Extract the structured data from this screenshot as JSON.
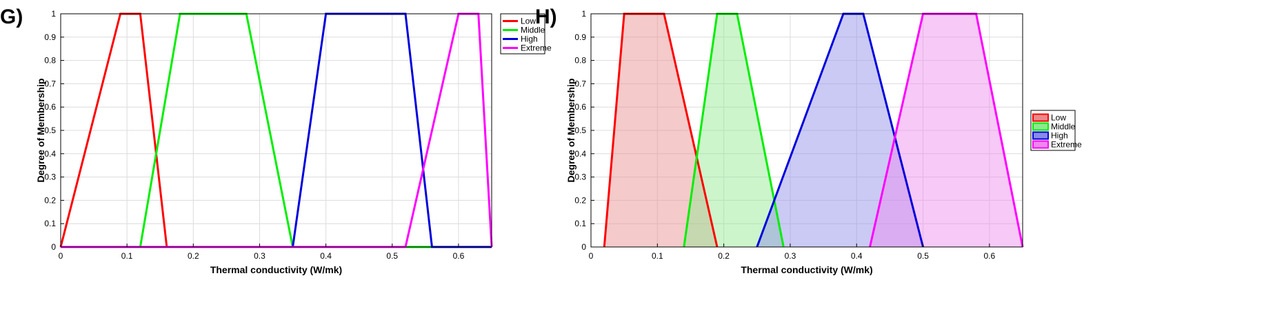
{
  "chart_data": [
    {
      "panel": "G)",
      "type": "line",
      "fill": false,
      "xlabel": "Thermal conductivity (W/mk)",
      "ylabel": "Degree of Membership",
      "xlim": [
        0,
        0.65
      ],
      "ylim": [
        0,
        1
      ],
      "xticks": [
        "0",
        "0.1",
        "0.2",
        "0.3",
        "0.4",
        "0.5",
        "0.6"
      ],
      "xtick_values": [
        0,
        0.1,
        0.2,
        0.3,
        0.4,
        0.5,
        0.6
      ],
      "yticks": [
        "0",
        "0.1",
        "0.2",
        "0.3",
        "0.4",
        "0.5",
        "0.6",
        "0.7",
        "0.8",
        "0.9",
        "1"
      ],
      "ytick_values": [
        0,
        0.1,
        0.2,
        0.3,
        0.4,
        0.5,
        0.6,
        0.7,
        0.8,
        0.9,
        1
      ],
      "grid": true,
      "legend_position": "top-right-outside",
      "series": [
        {
          "name": "Low",
          "color": "#ff0000",
          "x": [
            0,
            0.09,
            0.12,
            0.16,
            0.65
          ],
          "y": [
            0,
            1,
            1,
            0,
            0
          ]
        },
        {
          "name": "Middle",
          "color": "#00ee00",
          "x": [
            0,
            0.12,
            0.18,
            0.28,
            0.35,
            0.65
          ],
          "y": [
            0,
            0,
            1,
            1,
            0,
            0
          ]
        },
        {
          "name": "High",
          "color": "#0000dd",
          "x": [
            0,
            0.35,
            0.4,
            0.52,
            0.56,
            0.65
          ],
          "y": [
            0,
            0,
            1,
            1,
            0,
            0
          ]
        },
        {
          "name": "Extreme",
          "color": "#ff00ff",
          "x": [
            0,
            0.52,
            0.6,
            0.63,
            0.65
          ],
          "y": [
            0,
            0,
            1,
            1,
            0
          ]
        }
      ]
    },
    {
      "panel": "H)",
      "type": "area",
      "fill": true,
      "xlabel": "Thermal conductivity (W/mk)",
      "ylabel": "Degree of Membership",
      "xlim": [
        0,
        0.65
      ],
      "ylim": [
        0,
        1
      ],
      "xticks": [
        "0",
        "0.1",
        "0.2",
        "0.3",
        "0.4",
        "0.5",
        "0.6"
      ],
      "xtick_values": [
        0,
        0.1,
        0.2,
        0.3,
        0.4,
        0.5,
        0.6
      ],
      "yticks": [
        "0",
        "0.1",
        "0.2",
        "0.3",
        "0.4",
        "0.5",
        "0.6",
        "0.7",
        "0.8",
        "0.9",
        "1"
      ],
      "ytick_values": [
        0,
        0.1,
        0.2,
        0.3,
        0.4,
        0.5,
        0.6,
        0.7,
        0.8,
        0.9,
        1
      ],
      "grid": true,
      "legend_position": "right-outside",
      "series": [
        {
          "name": "Low",
          "color": "#ff0000",
          "fill": "#e88a8a",
          "x": [
            0.02,
            0.05,
            0.11,
            0.19
          ],
          "y": [
            0,
            1,
            1,
            0
          ]
        },
        {
          "name": "Middle",
          "color": "#00ee00",
          "fill": "#8fe88f",
          "x": [
            0.14,
            0.19,
            0.22,
            0.29
          ],
          "y": [
            0,
            1,
            1,
            0
          ]
        },
        {
          "name": "High",
          "color": "#0000dd",
          "fill": "#8a8ae8",
          "x": [
            0.25,
            0.38,
            0.41,
            0.5
          ],
          "y": [
            0,
            1,
            1,
            0
          ]
        },
        {
          "name": "Extreme",
          "color": "#ff00ff",
          "fill": "#ee88ee",
          "x": [
            0.42,
            0.5,
            0.58,
            0.65
          ],
          "y": [
            0,
            1,
            1,
            0
          ]
        }
      ]
    }
  ]
}
